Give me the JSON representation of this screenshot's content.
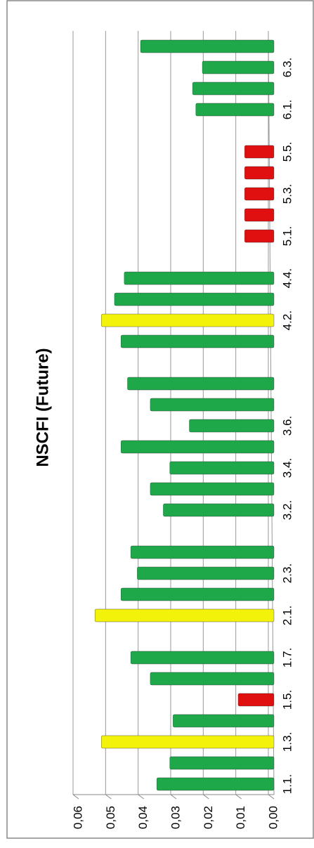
{
  "chart_data": {
    "type": "bar",
    "title": "NSCFI (Future)",
    "categories": [
      "1.1.",
      null,
      "1.3.",
      null,
      "1.5.",
      null,
      "1.7.",
      null,
      "2.1.",
      null,
      "2.3.",
      null,
      null,
      "3.2.",
      null,
      "3.4.",
      null,
      "3.6.",
      null,
      null,
      null,
      null,
      "4.2.",
      null,
      "4.4.",
      null,
      "5.1.",
      null,
      "5.3.",
      null,
      "5.5.",
      null,
      "6.1.",
      null,
      "6.3.",
      null
    ],
    "values": [
      0.036,
      0.032,
      0.053,
      0.031,
      0.011,
      0.038,
      0.044,
      null,
      0.055,
      0.047,
      0.042,
      0.044,
      null,
      0.034,
      0.038,
      0.032,
      0.047,
      0.026,
      0.038,
      0.045,
      null,
      0.047,
      0.053,
      0.049,
      0.046,
      null,
      0.009,
      0.009,
      0.009,
      0.009,
      0.009,
      null,
      0.024,
      0.025,
      0.022,
      0.041
    ],
    "colors": [
      "#1fa84a",
      "#1fa84a",
      "#f2f20a",
      "#1fa84a",
      "#e01010",
      "#1fa84a",
      "#1fa84a",
      null,
      "#f2f20a",
      "#1fa84a",
      "#1fa84a",
      "#1fa84a",
      null,
      "#1fa84a",
      "#1fa84a",
      "#1fa84a",
      "#1fa84a",
      "#1fa84a",
      "#1fa84a",
      "#1fa84a",
      null,
      "#1fa84a",
      "#f2f20a",
      "#1fa84a",
      "#1fa84a",
      null,
      "#e01010",
      "#e01010",
      "#e01010",
      "#e01010",
      "#e01010",
      null,
      "#1fa84a",
      "#1fa84a",
      "#1fa84a",
      "#1fa84a"
    ],
    "ylim": [
      0,
      0.06
    ],
    "yticks": [
      {
        "value": 0,
        "label": "0,00"
      },
      {
        "value": 0.01,
        "label": "0,01"
      },
      {
        "value": 0.02,
        "label": "0,02"
      },
      {
        "value": 0.03,
        "label": "0,03"
      },
      {
        "value": 0.04,
        "label": "0,04"
      },
      {
        "value": 0.05,
        "label": "0,05"
      },
      {
        "value": 0.06,
        "label": "0,06"
      }
    ],
    "grid": true
  }
}
